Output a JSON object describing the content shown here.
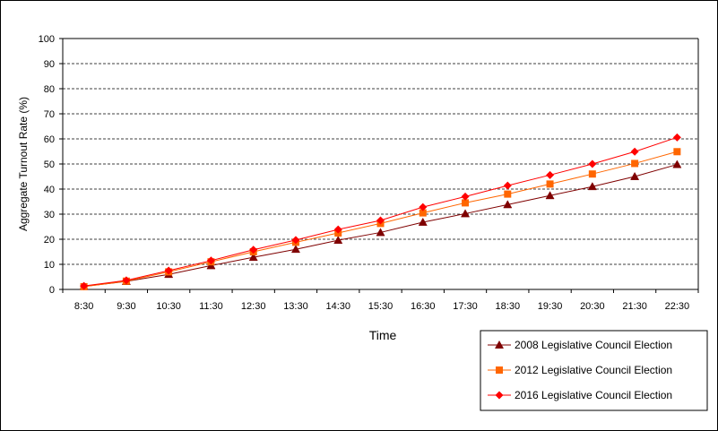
{
  "chart_data": {
    "type": "line",
    "title": "",
    "xlabel": "Time",
    "ylabel": "Aggregate Turnout Rate (%)",
    "ylim": [
      0,
      100
    ],
    "yticks": [
      0,
      10,
      20,
      30,
      40,
      50,
      60,
      70,
      80,
      90,
      100
    ],
    "grid": "horizontal dashed",
    "legend_position": "bottom-right",
    "categories": [
      "8:30",
      "9:30",
      "10:30",
      "11:30",
      "12:30",
      "13:30",
      "14:30",
      "15:30",
      "16:30",
      "17:30",
      "18:30",
      "19:30",
      "20:30",
      "21:30",
      "22:30"
    ],
    "series": [
      {
        "name": "2008 Legislative Council Election",
        "color": "#7f0000",
        "marker": "triangle",
        "values": [
          1.2,
          3.2,
          6.0,
          9.5,
          12.8,
          16.0,
          19.6,
          22.7,
          26.8,
          30.2,
          33.8,
          37.4,
          41.0,
          45.0,
          49.8
        ]
      },
      {
        "name": "2012 Legislative Council Election",
        "color": "#ff6600",
        "marker": "square",
        "values": [
          1.1,
          3.3,
          7.0,
          11.0,
          15.0,
          18.8,
          22.5,
          26.3,
          30.5,
          34.5,
          38.0,
          42.0,
          46.0,
          50.2,
          54.9
        ]
      },
      {
        "name": "2016 Legislative Council Election",
        "color": "#ff0000",
        "marker": "diamond",
        "values": [
          1.4,
          3.6,
          7.5,
          11.5,
          15.8,
          19.7,
          23.9,
          27.5,
          32.8,
          37.0,
          41.4,
          45.6,
          50.0,
          54.9,
          60.6
        ]
      }
    ]
  }
}
